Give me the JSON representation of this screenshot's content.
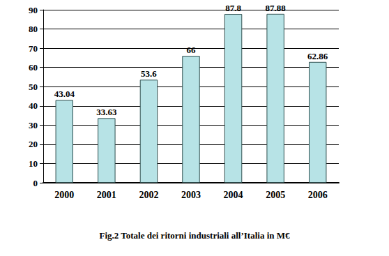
{
  "chart_data": {
    "type": "bar",
    "title": "Fig.2 Totale dei ritorni industriali all’Italia in M€",
    "categories": [
      "2000",
      "2001",
      "2002",
      "2003",
      "2004",
      "2005",
      "2006"
    ],
    "values": [
      43.04,
      33.63,
      53.6,
      66,
      87.8,
      87.88,
      62.86
    ],
    "color": "#b7e3e6",
    "ylim": [
      0,
      90
    ],
    "yticks": [
      0,
      10,
      20,
      30,
      40,
      50,
      60,
      70,
      80,
      90
    ],
    "grid": true,
    "data_labels": true
  }
}
